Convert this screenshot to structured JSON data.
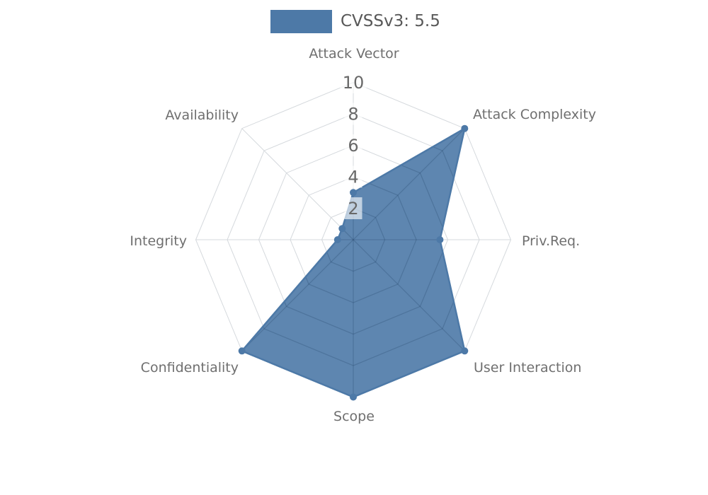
{
  "legend": {
    "label": "CVSSv3: 5.5",
    "swatch_color": "#4d79a7"
  },
  "chart_data": {
    "type": "radar",
    "title": "CVSSv3: 5.5",
    "categories": [
      "Attack Vector",
      "Attack Complexity",
      "Priv.Req.",
      "User Interaction",
      "Scope",
      "Confidentiality",
      "Integrity",
      "Availability"
    ],
    "values": [
      3,
      10,
      5.5,
      10,
      10,
      10,
      1,
      1
    ],
    "scale_ticks": [
      2,
      4,
      6,
      8,
      10
    ],
    "rmax": 10,
    "grid": "polygonal-web",
    "grid_on": true,
    "legend_position": "top-center",
    "series_color": "#4d79a7",
    "outer_grid_color": "#d5d9dd",
    "inner_grid_color": "rgba(15,35,70,0.16)",
    "axis_label_color": "#6f6f6f",
    "tick_label_color": "#686868",
    "tick_box_color": "rgba(255,255,255,0.62)"
  }
}
